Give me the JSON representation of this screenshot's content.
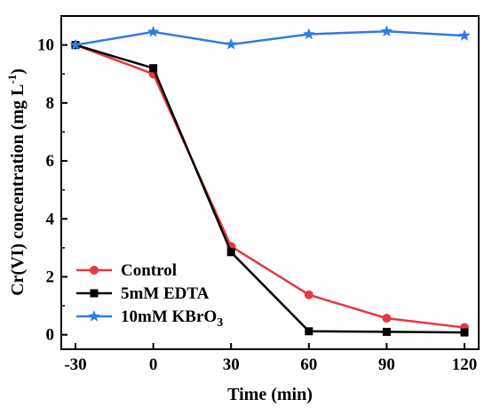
{
  "chart_data": {
    "type": "line",
    "xlabel": "Time (min)",
    "ylabel": "Cr(VI) concentration (mg L",
    "ylabel_sup": "-1",
    "ylabel_close": ")",
    "x": [
      -30,
      0,
      30,
      60,
      90,
      120
    ],
    "x_ticks": [
      "-30",
      "0",
      "30",
      "60",
      "90",
      "120"
    ],
    "y_ticks": [
      "0",
      "2",
      "4",
      "6",
      "8",
      "10"
    ],
    "xlim": [
      -30,
      120
    ],
    "ylim": [
      -0.5,
      11
    ],
    "grid": false,
    "legend_position": "bottom-left",
    "series": [
      {
        "name": "Control",
        "name_main": "Control",
        "name_sub": "",
        "color": "#e8383d",
        "marker": "circle",
        "values": [
          10.0,
          9.0,
          3.05,
          1.38,
          0.57,
          0.25
        ]
      },
      {
        "name": "5mM EDTA",
        "name_main": "5mM EDTA",
        "name_sub": "",
        "color": "#000000",
        "marker": "square",
        "values": [
          10.0,
          9.2,
          2.85,
          0.12,
          0.1,
          0.08
        ]
      },
      {
        "name": "10mM KBrO3",
        "name_main": "10mM KBrO",
        "name_sub": "3",
        "color": "#2f7de1",
        "marker": "star",
        "values": [
          10.0,
          10.45,
          10.02,
          10.37,
          10.47,
          10.32
        ]
      }
    ]
  }
}
